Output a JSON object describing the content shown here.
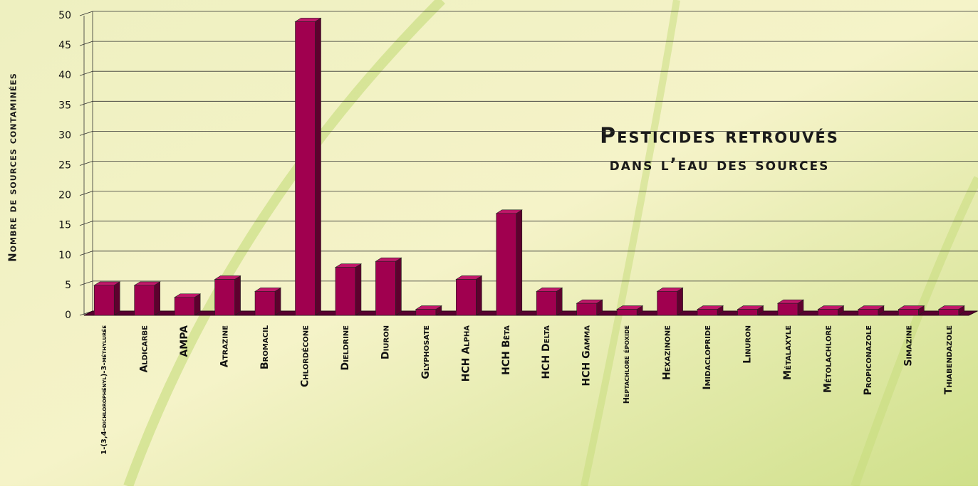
{
  "chart_data": {
    "type": "bar3d",
    "title": "Pesticides retrouvés",
    "subtitle": "dans l’eau des sources",
    "y_label": "Nombre de sources contaminées",
    "categories": [
      "1-(3,4-dichlorophényl)-3-méthylurée",
      "Aldicarbe",
      "AMPA",
      "Atrazine",
      "Bromacil",
      "Chlordécone",
      "Dieldrine",
      "Diuron",
      "Glyphosate",
      "HCH Alpha",
      "HCH Bêta",
      "HCH Delta",
      "HCH Gamma",
      "Heptachlore époxide",
      "Hexazinone",
      "Imidaclopride",
      "Linuron",
      "Métalaxyle",
      "Métolachlore",
      "Propiconazole",
      "Simazine",
      "Thiabendazole"
    ],
    "values": [
      5,
      5,
      3,
      6,
      4,
      49,
      8,
      9,
      1,
      6,
      17,
      4,
      2,
      1,
      4,
      1,
      1,
      2,
      1,
      1,
      1,
      1
    ],
    "color": "#a0004f",
    "ylim": [
      0,
      50
    ],
    "yticks": [
      0,
      5,
      10,
      15,
      20,
      25,
      30,
      35,
      40,
      45,
      50
    ],
    "grid": true
  }
}
